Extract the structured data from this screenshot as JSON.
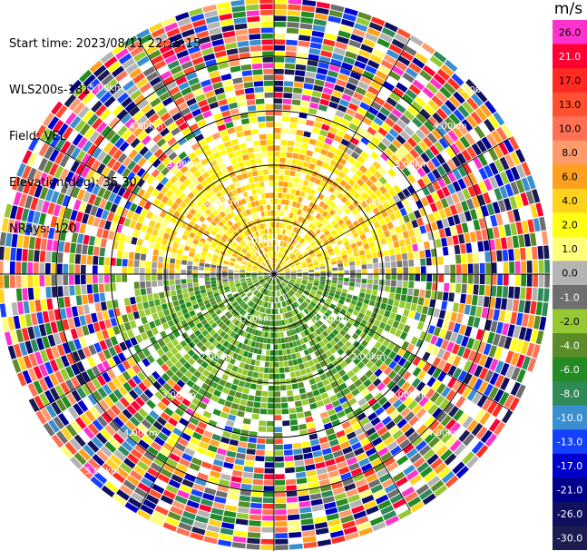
{
  "info": {
    "start_time": "Start time: 2023/08/11 22:15:15",
    "instrument": "WLS200s-181",
    "field": "Field: VEL",
    "elevation": "Elevation(deg): 35.30",
    "nrays": "NRays: 120"
  },
  "ring_labels": {
    "r1": "1.00km",
    "r2": "2.00km",
    "r3": "3.00km",
    "r4": "4.00km",
    "r5": "5.00km"
  },
  "colorbar": {
    "unit": "m/s",
    "ticks": [
      "26.0",
      "21.0",
      "17.0",
      "13.0",
      "10.0",
      "8.0",
      "6.0",
      "4.0",
      "2.0",
      "1.0",
      "0.0",
      "-1.0",
      "-2.0",
      "-4.0",
      "-6.0",
      "-8.0",
      "-10.0",
      "-13.0",
      "-17.0",
      "-21.0",
      "-26.0",
      "-30.0"
    ],
    "colors": [
      "#ff33cc",
      "#ff0033",
      "#ff2a22",
      "#ff5030",
      "#ff7055",
      "#ff9a6a",
      "#ffa01e",
      "#ffd21e",
      "#ffff14",
      "#ffff7a",
      "#b4b4b4",
      "#6e6e6e",
      "#96c832",
      "#5a8c28",
      "#228b22",
      "#2e8b57",
      "#3a8fd0",
      "#1440ff",
      "#0000cd",
      "#00008b",
      "#101060",
      "#1c1c50"
    ]
  },
  "near_field": {
    "north_colors": [
      "#ffff14",
      "#ffd21e",
      "#ffa01e",
      "#ffff7a",
      "#ffee00"
    ],
    "south_colors": [
      "#5a8c28",
      "#96c832",
      "#228b22",
      "#4aa02c",
      "#9acd32"
    ],
    "boundary_colors": [
      "#8c8c8c",
      "#a0a0a0",
      "#6e6e6e",
      "#b4b4b4"
    ]
  }
}
